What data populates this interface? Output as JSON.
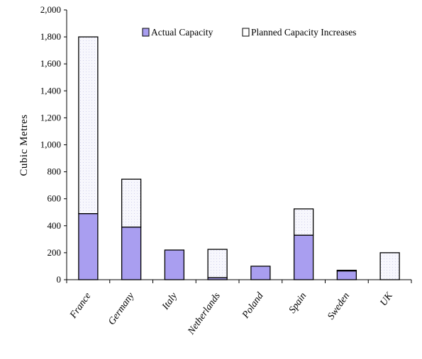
{
  "chart_data": {
    "type": "bar",
    "stacked": true,
    "categories": [
      "France",
      "Germany",
      "Italy",
      "Netherlands",
      "Poland",
      "Spain",
      "Sweden",
      "UK"
    ],
    "series": [
      {
        "name": "Actual Capacity",
        "color": "#a99ef0",
        "values": [
          490,
          390,
          220,
          15,
          100,
          330,
          65,
          0
        ]
      },
      {
        "name": "Planned Capacity Increases",
        "color": "#f6f6fd",
        "values": [
          1310,
          355,
          0,
          210,
          0,
          195,
          5,
          200
        ]
      }
    ],
    "title": "",
    "xlabel": "",
    "ylabel": "Cubic Metres",
    "ylim": [
      0,
      2000
    ],
    "yticks": [
      "0",
      "200",
      "400",
      "600",
      "800",
      "1,000",
      "1,200",
      "1,400",
      "1,600",
      "1,800",
      "2,000"
    ],
    "legend_position": "top-center",
    "grid": false
  }
}
